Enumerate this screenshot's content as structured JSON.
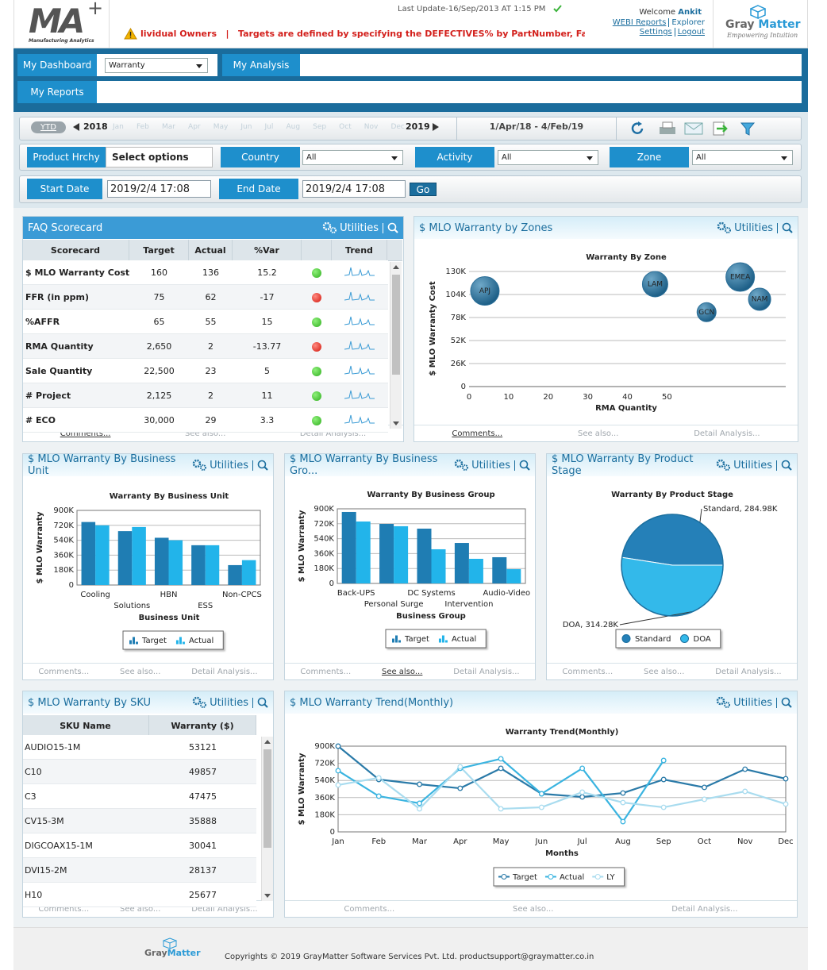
{
  "header": {
    "logo": "MA",
    "logo_plus": "+",
    "logo_sub": "Manufacturing Analytics",
    "last_update": "Last Update-16/Sep/2013 AT 1:15 PM",
    "ticker": "lividual Owners   |   Targets are defined by specifying the DEFECTIVES% by PartNumber, Failure C",
    "welcome": "Welcome",
    "user": "Ankit",
    "links": [
      "WEBI Reports",
      "Explorer",
      "Settings",
      "Logout"
    ],
    "brand": [
      "Gray",
      "Matter"
    ],
    "tagline": "Empowering Intuition"
  },
  "nav": {
    "dashboard": "My Dashboard",
    "dashboard_select": "Warranty",
    "analysis": "My Analysis",
    "reports": "My Reports"
  },
  "toolbar": {
    "period": "YTD",
    "start_year": "2018",
    "months": [
      "Jan",
      "Feb",
      "Mar",
      "Apr",
      "May",
      "Jun",
      "Jul",
      "Aug",
      "Sep",
      "Oct",
      "Nov",
      "Dec"
    ],
    "end_year": "2019",
    "range": "1/Apr/18 - 4/Feb/19"
  },
  "filters": [
    {
      "label": "Product Hrchy",
      "value": "Select options"
    },
    {
      "label": "Country",
      "value": "All"
    },
    {
      "label": "Activity",
      "value": "All"
    },
    {
      "label": "Zone",
      "value": "All"
    }
  ],
  "dates": {
    "start_label": "Start Date",
    "start": "2019/2/4 17:08",
    "end_label": "End Date",
    "end": "2019/2/4 17:08",
    "go": "Go"
  },
  "panel_links": {
    "utilities": "Utilities",
    "comments": "Comments...",
    "see_also": "See also...",
    "detail": "Detail Analysis..."
  },
  "panels": [
    "FAQ Scorecard",
    "$ MLO Warranty by Zones",
    "$ MLO Warranty By Business Unit",
    "$ MLO Warranty By Business Gro...",
    "$ MLO Warranty By Product Stage",
    "$ MLO Warranty By SKU",
    "$ MLO Warranty Trend(Monthly)"
  ],
  "scorecard": {
    "columns": [
      "Scorecard",
      "Target",
      "Actual",
      "%Var",
      "Trend"
    ],
    "rows": [
      [
        "$ MLO Warranty Cost",
        "160",
        "136",
        "15.2"
      ],
      [
        "FFR (in ppm)",
        "75",
        "62",
        "-17"
      ],
      [
        "%AFFR",
        "65",
        "55",
        "15"
      ],
      [
        "RMA Quantity",
        "2,650",
        "2",
        "-13.77"
      ],
      [
        "Sale Quantity",
        "22,500",
        "23",
        "5"
      ],
      [
        "# Project",
        "2,125",
        "2",
        "11"
      ],
      [
        "# ECO",
        "30,000",
        "29",
        "3.3"
      ]
    ],
    "status": [
      "green",
      "red",
      "green",
      "red",
      "green",
      "green",
      "green"
    ]
  },
  "sku": {
    "columns": [
      "SKU Name",
      "Warranty ($)"
    ],
    "rows": [
      [
        "AUDIO15-1M",
        "53121"
      ],
      [
        "C10",
        "49857"
      ],
      [
        "C3",
        "47475"
      ],
      [
        "CV15-3M",
        "35888"
      ],
      [
        "DIGCOAX15-1M",
        "30041"
      ],
      [
        "DVI15-2M",
        "28137"
      ],
      [
        "H10",
        "25677"
      ]
    ]
  },
  "footer": {
    "brand": [
      "Gray",
      "Matter"
    ],
    "copyright": "Copyrights © 2019 GrayMatter Software Services Pvt. Ltd. productsupport@graymatter.co.in"
  },
  "chart_data": [
    {
      "type": "bubble",
      "title": "Warranty By Zone",
      "x_label": "RMA Quantity",
      "y_label": "$ MLO Warranty Cost",
      "labels": [
        "APJ",
        "LAM",
        "EMEA",
        "NAM",
        "GCN"
      ],
      "x": [
        4,
        47,
        68.5,
        73.4,
        60
      ],
      "values": [
        108000,
        115700,
        123700,
        98600,
        84000
      ],
      "sizes": [
        18,
        16,
        18,
        14,
        12
      ],
      "color": "#2b6f99",
      "xlim": [
        0,
        80
      ],
      "xticks": [
        0,
        10,
        20,
        30,
        40,
        50
      ],
      "ylim": [
        0,
        130000
      ],
      "yticks": [
        0,
        {
          "value": 26000,
          "label": "26K"
        },
        {
          "value": 52000,
          "label": "52K"
        },
        {
          "value": 78000,
          "label": "78K"
        },
        {
          "value": 104000,
          "label": "104K"
        },
        {
          "value": 130000,
          "label": "130K"
        }
      ],
      "grid": true
    },
    {
      "type": "bar",
      "title": "Warranty By Business Unit",
      "x_label": "Business Unit",
      "y_label": "$ MLO Warranty",
      "categories": [
        "Cooling",
        "Solutions",
        "HBN",
        "ESS",
        "Non-CPCS"
      ],
      "series": [
        {
          "name": "Target",
          "color": "#1f7db3",
          "values": [
            760000,
            650000,
            570000,
            480000,
            240000
          ]
        },
        {
          "name": "Actual",
          "color": "#22b4ea",
          "values": [
            720000,
            700000,
            540000,
            480000,
            300000
          ]
        }
      ],
      "ylim": [
        0,
        900000
      ],
      "yticks": [
        0,
        {
          "value": 180000,
          "label": "180K"
        },
        {
          "value": 360000,
          "label": "360K"
        },
        {
          "value": 540000,
          "label": "540K"
        },
        {
          "value": 720000,
          "label": "720K"
        },
        {
          "value": 900000,
          "label": "900K"
        }
      ],
      "grid": true
    },
    {
      "type": "bar",
      "title": "Warranty By Business Group",
      "x_label": "Business Group",
      "y_label": "$ MLO Warranty",
      "categories": [
        "Back-UPS",
        "Personal Surge",
        "DC Systems",
        "Intervention",
        "Audio-Video"
      ],
      "series": [
        {
          "name": "Target",
          "color": "#1f7db3",
          "values": [
            862000,
            718000,
            661000,
            488000,
            316000
          ]
        },
        {
          "name": "Actual",
          "color": "#22b4ea",
          "values": [
            747000,
            690000,
            412000,
            297000,
            172000
          ]
        }
      ],
      "ylim": [
        0,
        900000
      ],
      "yticks": [
        0,
        {
          "value": 180000,
          "label": "180K"
        },
        {
          "value": 360000,
          "label": "360K"
        },
        {
          "value": 540000,
          "label": "540K"
        },
        {
          "value": 720000,
          "label": "720K"
        },
        {
          "value": 900000,
          "label": "900K"
        }
      ],
      "grid": true
    },
    {
      "type": "pie",
      "title": "Warranty By Product Stage",
      "categories": [
        "Standard",
        "DOA"
      ],
      "values": [
        284980,
        314280
      ],
      "value_labels": [
        "Standard, 284.98K",
        "DOA, 314.28K"
      ],
      "colors": [
        "#2580b8",
        "#33b9ea"
      ]
    },
    {
      "type": "line",
      "title": "Warranty Trend(Monthly)",
      "x_label": "Months",
      "y_label": "$ MLO Warranty",
      "categories": [
        "Jan",
        "Feb",
        "Mar",
        "Apr",
        "May",
        "Jun",
        "Jul",
        "Aug",
        "Sep",
        "Oct",
        "Nov",
        "Dec"
      ],
      "series": [
        {
          "name": "Target",
          "color": "#2a7aa8",
          "values": [
            900000,
            550000,
            500000,
            458000,
            667000,
            400000,
            367000,
            408000,
            550000,
            467000,
            658000,
            558000
          ]
        },
        {
          "name": "Actual",
          "color": "#3ab4e0",
          "values": [
            642000,
            375000,
            300000,
            667000,
            767000,
            400000,
            667000,
            108000,
            750000,
            null,
            null,
            null
          ]
        },
        {
          "name": "LY",
          "color": "#a9dcef",
          "values": [
            492000,
            567000,
            242000,
            683000,
            242000,
            258000,
            417000,
            308000,
            258000,
            342000,
            425000,
            292000
          ]
        }
      ],
      "ylim": [
        0,
        900000
      ],
      "yticks": [
        0,
        {
          "value": 180000,
          "label": "180K"
        },
        {
          "value": 360000,
          "label": "360K"
        },
        {
          "value": 540000,
          "label": "540K"
        },
        {
          "value": 720000,
          "label": "720K"
        },
        {
          "value": 900000,
          "label": "900K"
        }
      ],
      "grid": true
    }
  ]
}
